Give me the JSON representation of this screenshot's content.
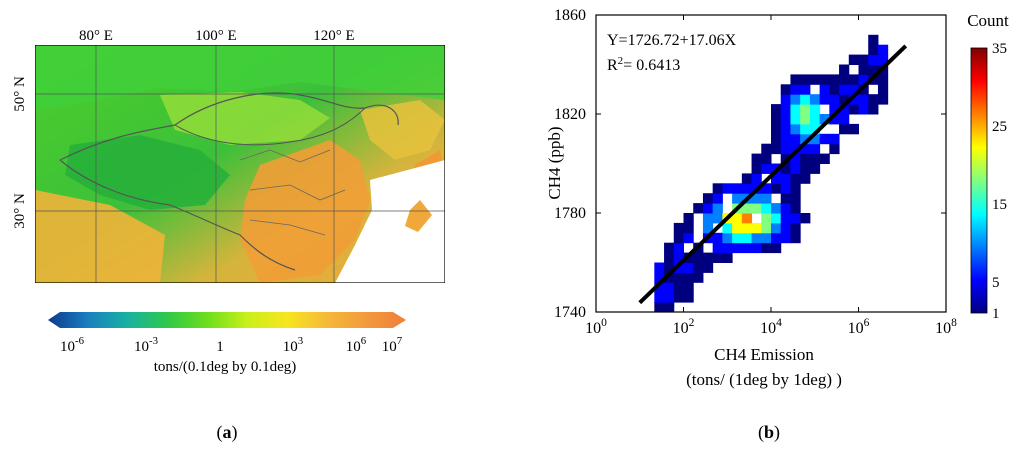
{
  "panel_a": {
    "label": "(a)",
    "lon_ticks": [
      "80° E",
      "100° E",
      "120° E"
    ],
    "lat_ticks": [
      "50° N",
      "30° N"
    ],
    "colorbar": {
      "ticks": [
        {
          "base": "10",
          "exp": "-6"
        },
        {
          "base": "10",
          "exp": "-3"
        },
        {
          "base": "1",
          "exp": ""
        },
        {
          "base": "10",
          "exp": "3"
        },
        {
          "base": "10",
          "exp": "6"
        },
        {
          "base": "10",
          "exp": "7"
        }
      ],
      "label": "tons/(0.1deg by 0.1deg)",
      "colors": [
        "#0b3a8c",
        "#1a7fbf",
        "#19b1a3",
        "#2fc84a",
        "#6cde1c",
        "#c9ef1c",
        "#f7e61e",
        "#f6b93a",
        "#f39a3c",
        "#ef7f3a"
      ]
    }
  },
  "panel_b": {
    "label": "(b)",
    "equation": "Y=1726.72+17.06X",
    "r2_prefix": "R",
    "r2_sup": "2",
    "r2_value": "= 0.6413",
    "colorbar_title": "Count",
    "colorbar_ticks": [
      "35",
      "25",
      "15",
      "5",
      "1"
    ],
    "colorbar_colors": [
      "#00007f",
      "#0000ff",
      "#0080ff",
      "#00ffff",
      "#80ff80",
      "#ffff00",
      "#ff8000",
      "#ff0000",
      "#7f0000"
    ]
  },
  "chart_data": {
    "type": "heatmap",
    "xlabel": "CH4 Emission",
    "xlabel2": "(tons/ (1deg by 1deg) )",
    "ylabel": "CH4 (ppb)",
    "xscale": "log",
    "xlim": [
      1,
      100000000
    ],
    "ylim": [
      1740,
      1860
    ],
    "x_ticks": [
      {
        "base": "10",
        "exp": "0"
      },
      {
        "base": "10",
        "exp": "2"
      },
      {
        "base": "10",
        "exp": "4"
      },
      {
        "base": "10",
        "exp": "6"
      },
      {
        "base": "10",
        "exp": "8"
      }
    ],
    "y_ticks": [
      "1860",
      "1820",
      "1780",
      "1740"
    ],
    "count_range": [
      1,
      35
    ],
    "fit_line": {
      "intercept": 1726.72,
      "slope": 17.06,
      "x_from": 10,
      "x_to": 12000000
    },
    "r_squared": 0.6413
  }
}
